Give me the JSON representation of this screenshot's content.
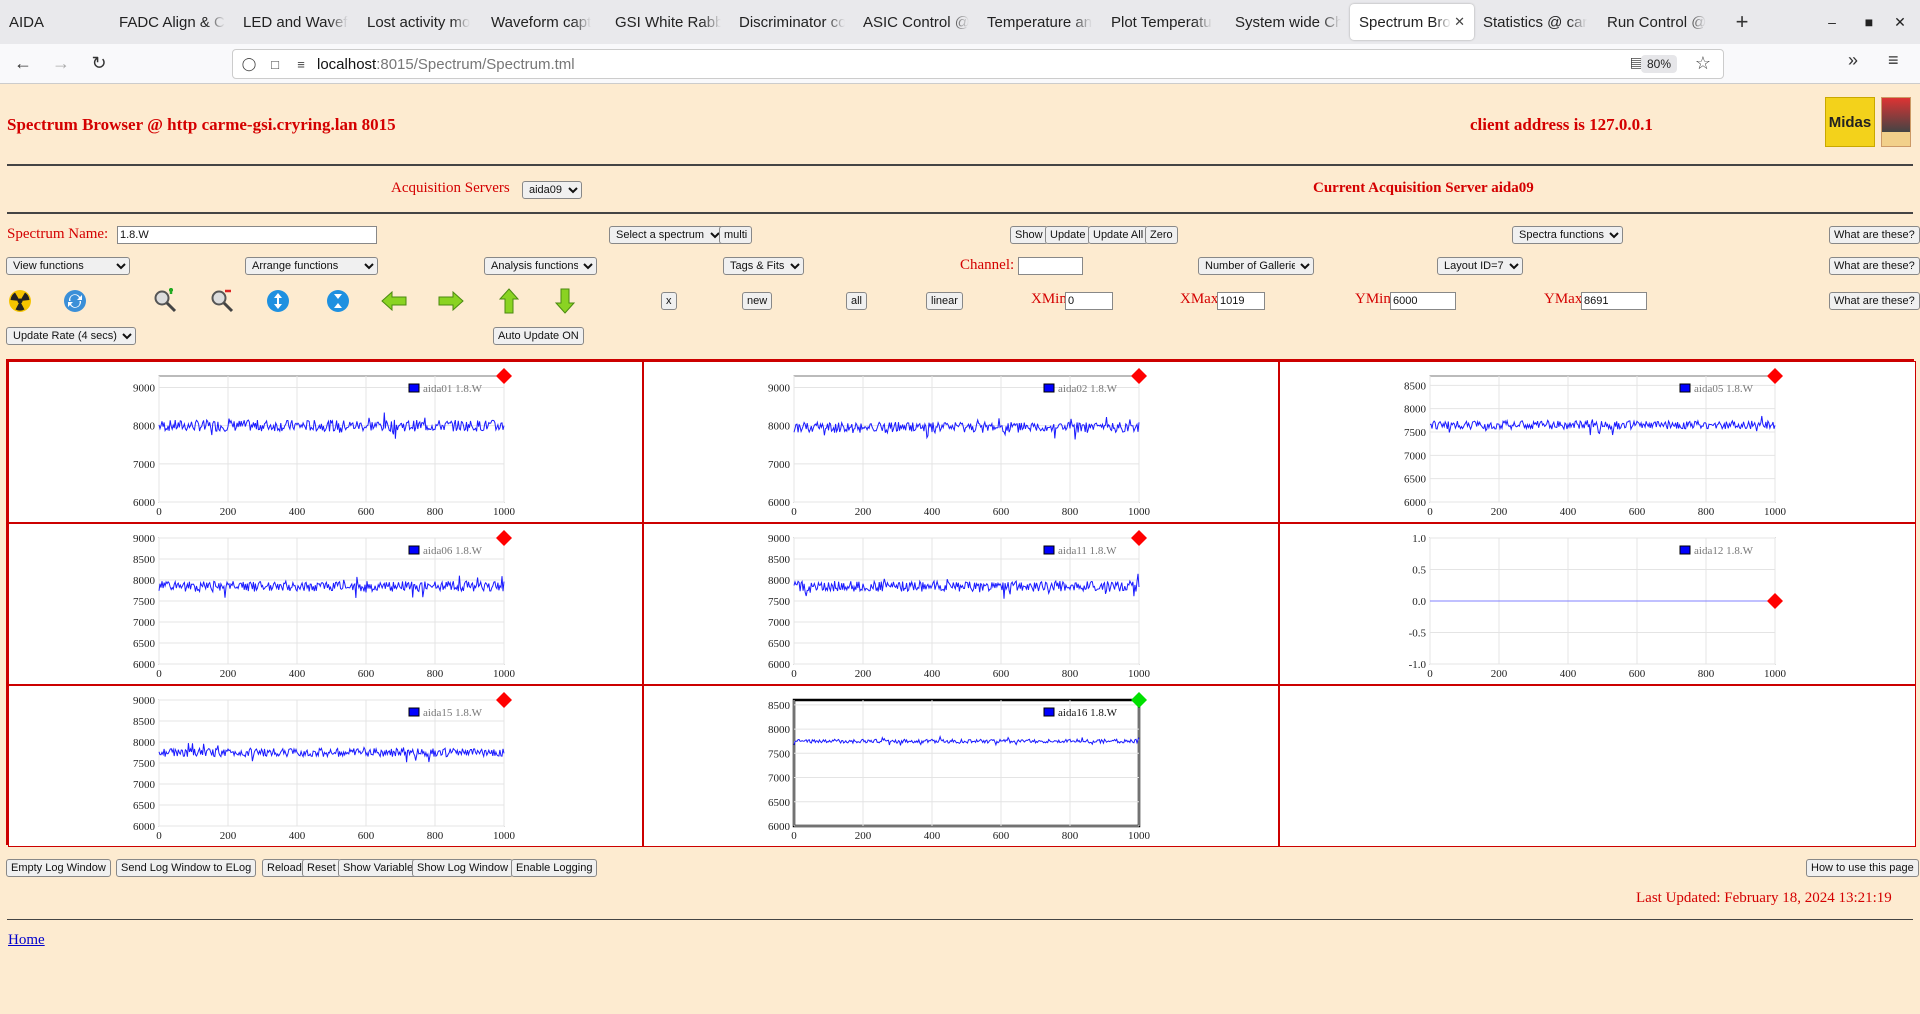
{
  "browser": {
    "app_name": "AIDA",
    "tabs": [
      {
        "label": "FADC Align & C"
      },
      {
        "label": "LED and Wavef"
      },
      {
        "label": "Lost activity mo"
      },
      {
        "label": "Waveform capt"
      },
      {
        "label": "GSI White Rabb"
      },
      {
        "label": "Discriminator co"
      },
      {
        "label": "ASIC Control @"
      },
      {
        "label": "Temperature an"
      },
      {
        "label": "Plot Temperatu"
      },
      {
        "label": "System wide Ch"
      },
      {
        "label": "Spectrum Bro",
        "active": true
      },
      {
        "label": "Statistics @ car"
      },
      {
        "label": "Run Control @"
      }
    ],
    "url_host": "localhost",
    "url_path": ":8015/Spectrum/Spectrum.tml",
    "zoom": "80%"
  },
  "header": {
    "title": "Spectrum Browser @ http carme-gsi.cryring.lan 8015",
    "client": "client address is 127.0.0.1",
    "logo_text": "Midas"
  },
  "acq": {
    "label": "Acquisition Servers",
    "selected": "aida09",
    "current": "Current Acquisition Server aida09"
  },
  "controls": {
    "spectrum_name_label": "Spectrum Name:",
    "spectrum_name_value": "1.8.W",
    "select_spectrum": "Select a spectrum",
    "multi": "multi",
    "show": "Show",
    "update": "Update",
    "update_all": "Update All",
    "zero": "Zero",
    "spectra_functions": "Spectra functions",
    "what_are_these": "What are these?",
    "view_functions": "View functions",
    "arrange_functions": "Arrange functions",
    "analysis_functions": "Analysis functions",
    "tags_fits": "Tags & Fits",
    "channel_label": "Channel:",
    "channel_value": "",
    "number_of_galleries": "Number of Galleries",
    "layout": "Layout ID=7",
    "x": "x",
    "new": "new",
    "all": "all",
    "linear": "linear",
    "xmin_label": "XMin",
    "xmin": "0",
    "xmax_label": "XMax",
    "xmax": "1019",
    "ymin_label": "YMin",
    "ymin": "6000",
    "ymax_label": "YMax",
    "ymax": "8691",
    "update_rate": "Update Rate (4 secs)",
    "auto_update": "Auto Update ON"
  },
  "icons": [
    "radiation-icon",
    "refresh-icon",
    "zoom-in-icon",
    "zoom-out-icon",
    "expand-y-icon",
    "compress-y-icon",
    "left-arrow-icon",
    "right-arrow-icon",
    "up-arrow-icon",
    "down-arrow-icon"
  ],
  "chart_data": [
    {
      "type": "line",
      "legend": "aida01 1.8.W",
      "xlim": [
        0,
        1000
      ],
      "xticks": [
        "0",
        "200",
        "400",
        "600",
        "800",
        "1000"
      ],
      "yticks": [
        "6000",
        "7000",
        "8000",
        "9000"
      ],
      "ylim": [
        6000,
        9300
      ],
      "baseline": 8000,
      "noise": 300,
      "marker_color": "#ff0000",
      "flat": false
    },
    {
      "type": "line",
      "legend": "aida02 1.8.W",
      "xlim": [
        0,
        1000
      ],
      "xticks": [
        "0",
        "200",
        "400",
        "600",
        "800",
        "1000"
      ],
      "yticks": [
        "6000",
        "7000",
        "8000",
        "9000"
      ],
      "ylim": [
        6000,
        9300
      ],
      "baseline": 7950,
      "noise": 280,
      "marker_color": "#ff0000",
      "flat": false
    },
    {
      "type": "line",
      "legend": "aida05 1.8.W",
      "xlim": [
        0,
        1000
      ],
      "xticks": [
        "0",
        "200",
        "400",
        "600",
        "800",
        "1000"
      ],
      "yticks": [
        "6000",
        "6500",
        "7000",
        "7500",
        "8000",
        "8500"
      ],
      "ylim": [
        6000,
        8700
      ],
      "baseline": 7650,
      "noise": 180,
      "marker_color": "#ff0000",
      "flat": false
    },
    {
      "type": "line",
      "legend": "aida06 1.8.W",
      "xlim": [
        0,
        1000
      ],
      "xticks": [
        "0",
        "200",
        "400",
        "600",
        "800",
        "1000"
      ],
      "yticks": [
        "6000",
        "6500",
        "7000",
        "7500",
        "8000",
        "8500",
        "9000"
      ],
      "ylim": [
        6000,
        9000
      ],
      "baseline": 7850,
      "noise": 250,
      "marker_color": "#ff0000",
      "flat": false
    },
    {
      "type": "line",
      "legend": "aida11 1.8.W",
      "xlim": [
        0,
        1000
      ],
      "xticks": [
        "0",
        "200",
        "400",
        "600",
        "800",
        "1000"
      ],
      "yticks": [
        "6000",
        "6500",
        "7000",
        "7500",
        "8000",
        "8500",
        "9000"
      ],
      "ylim": [
        6000,
        9000
      ],
      "baseline": 7850,
      "noise": 250,
      "marker_color": "#ff0000",
      "flat": false
    },
    {
      "type": "line",
      "legend": "aida12 1.8.W",
      "xlim": [
        0,
        1000
      ],
      "xticks": [
        "0",
        "200",
        "400",
        "600",
        "800",
        "1000"
      ],
      "yticks": [
        "-1.0",
        "-0.5",
        "0.0",
        "0.5",
        "1.0"
      ],
      "ylim": [
        -1,
        1
      ],
      "baseline": 0,
      "noise": 0,
      "marker_color": "#ff0000",
      "flat": true
    },
    {
      "type": "line",
      "legend": "aida15 1.8.W",
      "xlim": [
        0,
        1000
      ],
      "xticks": [
        "0",
        "200",
        "400",
        "600",
        "800",
        "1000"
      ],
      "yticks": [
        "6000",
        "6500",
        "7000",
        "7500",
        "8000",
        "8500",
        "9000"
      ],
      "ylim": [
        6000,
        9000
      ],
      "baseline": 7750,
      "noise": 200,
      "marker_color": "#ff0000",
      "flat": false
    },
    {
      "type": "line",
      "legend": "aida16 1.8.W",
      "xlim": [
        0,
        1000
      ],
      "xticks": [
        "0",
        "200",
        "400",
        "600",
        "800",
        "1000"
      ],
      "yticks": [
        "6000",
        "6500",
        "7000",
        "7500",
        "8000",
        "8500"
      ],
      "ylim": [
        6000,
        8600
      ],
      "baseline": 7750,
      "noise": 80,
      "marker_color": "#00e000",
      "flat": false,
      "selected": true
    }
  ],
  "footer": {
    "buttons": [
      "Empty Log Window",
      "Send Log Window to ELog",
      "Reload",
      "Reset",
      "Show Variables",
      "Show Log Window",
      "Enable Logging"
    ],
    "how_to": "How to use this page",
    "last_updated": "Last Updated: February 18, 2024 13:21:19",
    "home": "Home"
  },
  "colors": {
    "page_bg": "#fdebd0",
    "accent": "#d40000",
    "trace": "#1a1aff"
  }
}
